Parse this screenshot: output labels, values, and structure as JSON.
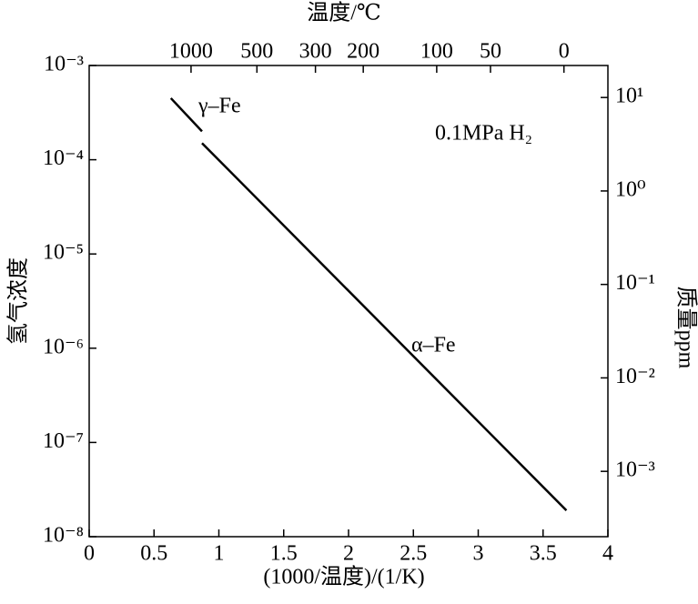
{
  "chart_data": {
    "type": "line",
    "x_label": "(1000/温度)/(1/K)",
    "x2_label": "温度/℃",
    "y_label": "氢气浓度",
    "y2_label": "质量ppm",
    "annotation": "0.1MPa H₂",
    "xlim": [
      0,
      4
    ],
    "xticks": [
      0,
      0.5,
      1,
      1.5,
      2,
      2.5,
      3,
      3.5,
      4
    ],
    "x2ticks": [
      1000,
      500,
      300,
      200,
      100,
      50,
      0
    ],
    "ylim": [
      1e-08,
      0.001
    ],
    "yscale": "log",
    "yticks": [
      {
        "value": 1e-08,
        "label": "10⁻⁸"
      },
      {
        "value": 1e-07,
        "label": "10⁻⁷"
      },
      {
        "value": 1e-06,
        "label": "10⁻⁶"
      },
      {
        "value": 1e-05,
        "label": "10⁻⁵"
      },
      {
        "value": 0.0001,
        "label": "10⁻⁴"
      },
      {
        "value": 0.001,
        "label": "10⁻³"
      }
    ],
    "y2lim": [
      0.0002,
      22
    ],
    "y2ticks": [
      {
        "value": 0.001,
        "label": "10⁻³"
      },
      {
        "value": 0.01,
        "label": "10⁻²"
      },
      {
        "value": 0.1,
        "label": "10⁻¹"
      },
      {
        "value": 1,
        "label": "10⁰"
      },
      {
        "value": 10,
        "label": "10¹"
      }
    ],
    "series": [
      {
        "name": "γ–Fe",
        "color": "#000000",
        "x": [
          0.63,
          0.87
        ],
        "values": [
          0.00045,
          0.0002
        ]
      },
      {
        "name": "α–Fe",
        "color": "#000000",
        "x": [
          0.87,
          3.68
        ],
        "values": [
          0.00015,
          1.9e-08
        ]
      }
    ]
  }
}
